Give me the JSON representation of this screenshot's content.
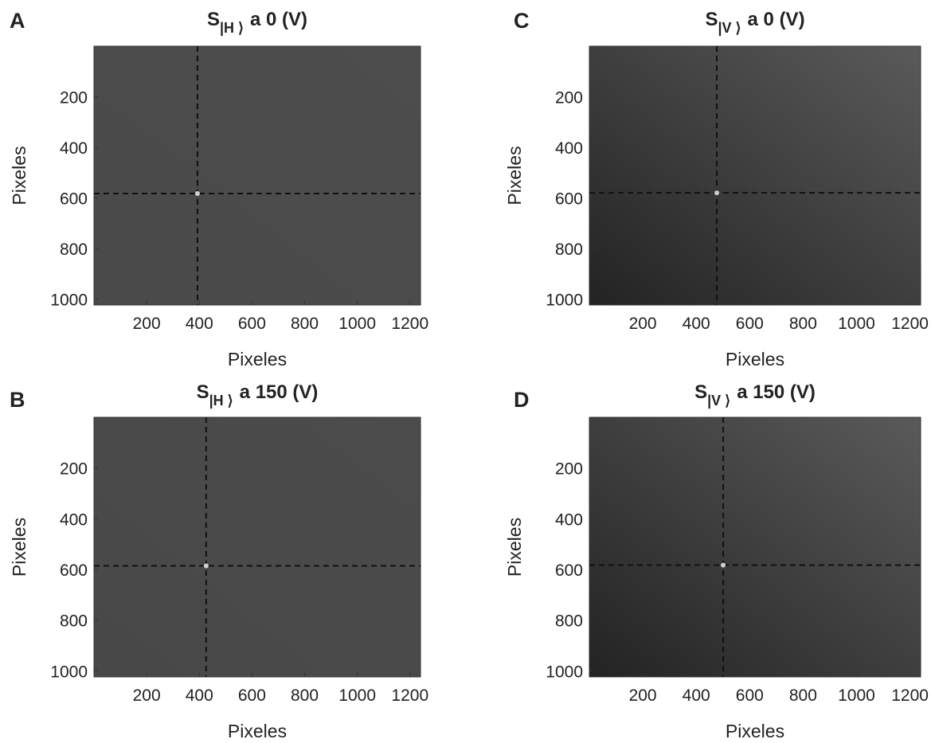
{
  "chart_data": [
    {
      "type": "image",
      "panel_label": "A",
      "title_main": "S",
      "title_subscript": "|H ⟩",
      "title_rest": "a 0 (V)",
      "xlabel": "Pixeles",
      "ylabel": "Pixeles",
      "xlim": [
        0,
        1240
      ],
      "ylim": [
        1024,
        0
      ],
      "xticks": [
        200,
        400,
        600,
        800,
        1000,
        1200
      ],
      "yticks": [
        200,
        400,
        600,
        800,
        1000
      ],
      "colors": [
        "#4a4a4a",
        "#4d4d4d"
      ],
      "crosshair": {
        "x": 393,
        "y": 583
      }
    },
    {
      "type": "image",
      "panel_label": "B",
      "title_main": "S",
      "title_subscript": "|H ⟩",
      "title_rest": "a 150 (V)",
      "xlabel": "Pixeles",
      "ylabel": "Pixeles",
      "xlim": [
        0,
        1240
      ],
      "ylim": [
        1024,
        0
      ],
      "xticks": [
        200,
        400,
        600,
        800,
        1000,
        1200
      ],
      "yticks": [
        200,
        400,
        600,
        800,
        1000
      ],
      "colors": [
        "#484848",
        "#4c4c4c"
      ],
      "crosshair": {
        "x": 426,
        "y": 586
      }
    },
    {
      "type": "image",
      "panel_label": "C",
      "title_main": "S",
      "title_subscript": "|V ⟩",
      "title_rest": "a 0 (V)",
      "xlabel": "Pixeles",
      "ylabel": "Pixeles",
      "xlim": [
        0,
        1240
      ],
      "ylim": [
        1024,
        0
      ],
      "xticks": [
        200,
        400,
        600,
        800,
        1000,
        1200
      ],
      "yticks": [
        200,
        400,
        600,
        800,
        1000
      ],
      "colors": [
        "#232323",
        "#5a5a5a"
      ],
      "crosshair": {
        "x": 477,
        "y": 580
      }
    },
    {
      "type": "image",
      "panel_label": "D",
      "title_main": "S",
      "title_subscript": "|V ⟩",
      "title_rest": "a 150 (V)",
      "xlabel": "Pixeles",
      "ylabel": "Pixeles",
      "xlim": [
        0,
        1240
      ],
      "ylim": [
        1024,
        0
      ],
      "xticks": [
        200,
        400,
        600,
        800,
        1000,
        1200
      ],
      "yticks": [
        200,
        400,
        600,
        800,
        1000
      ],
      "colors": [
        "#232323",
        "#5a5a5a"
      ],
      "crosshair": {
        "x": 501,
        "y": 583
      }
    }
  ]
}
